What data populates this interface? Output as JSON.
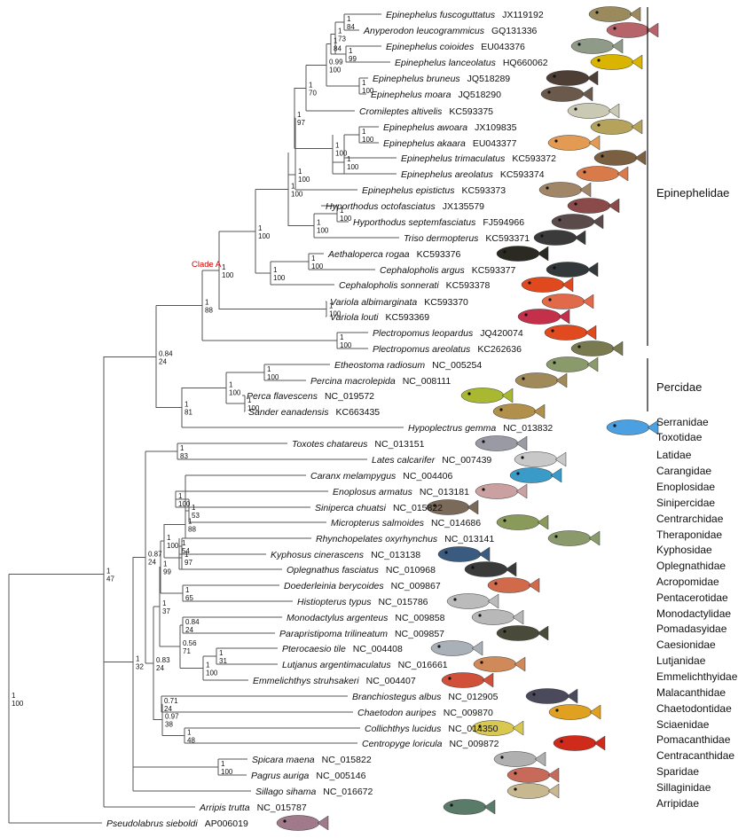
{
  "colors": {
    "branch": "#555555",
    "clade_label": "#d40000",
    "text": "#111111"
  },
  "clade_label": "Clade A",
  "groups": [
    "Epinephelidae",
    "Percidae"
  ],
  "families": [
    "Serranidae",
    "Toxotidae",
    "Latidae",
    "Carangidae",
    "Enoplosidae",
    "Sinipercidae",
    "Centrarchidae",
    "Theraponidae",
    "Kyphosidae",
    "Oplegnathidae",
    "Acropomidae",
    "Pentacerotidae",
    "Monodactylidae",
    "Pomadasyidae",
    "Caesionidae",
    "Lutjanidae",
    "Emmelichthyidae",
    "Malacanthidae",
    "Chaetodontidae",
    "Sciaenidae",
    "Pomacanthidae",
    "Centracanthidae",
    "Sparidae",
    "Sillaginidae",
    "Arripidae"
  ],
  "taxa": [
    {
      "species": "Epinephelus fuscoguttatus",
      "acc": "JX119192",
      "fish": "#9a8a5c"
    },
    {
      "species": "Anyperodon leucogrammicus",
      "acc": "GQ131336",
      "fish": "#b7636a"
    },
    {
      "species": "Epinephelus coioides",
      "acc": "EU043376",
      "fish": "#8f9a88"
    },
    {
      "species": "Epinephelus lanceolatus",
      "acc": "HQ660062",
      "fish": "#d9b400"
    },
    {
      "species": "Epinephelus bruneus",
      "acc": "JQ518289",
      "fish": "#4e3f36"
    },
    {
      "species": "Epinephelus moara",
      "acc": "JQ518290",
      "fish": "#6b5a4c"
    },
    {
      "species": "Cromileptes altivelis",
      "acc": "KC593375",
      "fish": "#c9c9b4"
    },
    {
      "species": "Epinephelus awoara",
      "acc": "JX109835",
      "fish": "#b5a35c"
    },
    {
      "species": "Epinephelus akaara",
      "acc": "EU043377",
      "fish": "#e39a52"
    },
    {
      "species": "Epinephelus trimaculatus",
      "acc": "KC593372",
      "fish": "#7a6040"
    },
    {
      "species": "Epinephelus areolatus",
      "acc": "KC593374",
      "fish": "#d97a4a"
    },
    {
      "species": "Epinephelus epistictus",
      "acc": "KC593373",
      "fish": "#a08666"
    },
    {
      "species": "Hyporthodus octofasciatus",
      "acc": "JX135579",
      "fish": "#8a4a4a"
    },
    {
      "species": "Hyporthodus septemfasciatus",
      "acc": "FJ594966",
      "fish": "#5a4a4a"
    },
    {
      "species": "Triso dermopterus",
      "acc": "KC593371",
      "fish": "#3a3a3a"
    },
    {
      "species": "Aethaloperca rogaa",
      "acc": "KC593376",
      "fish": "#2a2a22"
    },
    {
      "species": "Cephalopholis argus",
      "acc": "KC593377",
      "fish": "#33383a"
    },
    {
      "species": "Cephalopholis sonnerati",
      "acc": "KC593378",
      "fish": "#e0491e"
    },
    {
      "species": "Variola albimarginata",
      "acc": "KC593370",
      "fish": "#e06a4a"
    },
    {
      "species": "Variola louti",
      "acc": "KC593369",
      "fish": "#c4304a"
    },
    {
      "species": "Plectropomus leopardus",
      "acc": "JQ420074",
      "fish": "#e04a1e"
    },
    {
      "species": "Plectropomus areolatus",
      "acc": "KC262636",
      "fish": "#7a7a50"
    },
    {
      "species": "Etheostoma radiosum",
      "acc": "NC_005254",
      "fish": "#8a9a6a"
    },
    {
      "species": "Percina macrolepida",
      "acc": "NC_008111",
      "fish": "#a08a5a"
    },
    {
      "species": "Perca flavescens",
      "acc": "NC_019572",
      "fish": "#a8b830"
    },
    {
      "species": "Sander eanadensis",
      "acc": "KC663435",
      "fish": "#b0904a"
    },
    {
      "species": "Hypoplectrus gemma",
      "acc": "NC_013832",
      "fish": "#4aa0e0"
    },
    {
      "species": "Toxotes chatareus",
      "acc": "NC_013151",
      "fish": "#9a9aa4"
    },
    {
      "species": "Lates calcarifer",
      "acc": "NC_007439",
      "fish": "#c8c8c8"
    },
    {
      "species": "Caranx melampygus",
      "acc": "NC_004406",
      "fish": "#3a9ac8"
    },
    {
      "species": "Enoplosus armatus",
      "acc": "NC_013181",
      "fish": "#caa0a0"
    },
    {
      "species": "Siniperca chuatsi",
      "acc": "NC_015822",
      "fish": "#7a6a5a"
    },
    {
      "species": "Micropterus salmoides",
      "acc": "NC_014686",
      "fish": "#8a9a5a"
    },
    {
      "species": "Rhynchopelates oxyrhynchus",
      "acc": "NC_013141",
      "fish": "#8a9a6a"
    },
    {
      "species": "Kyphosus cinerascens",
      "acc": "NC_013138",
      "fish": "#3a5a80"
    },
    {
      "species": "Oplegnathus fasciatus",
      "acc": "NC_010968",
      "fish": "#3a3a3a"
    },
    {
      "species": "Doederleinia berycoides",
      "acc": "NC_009867",
      "fish": "#d06a4a"
    },
    {
      "species": "Histiopterus typus",
      "acc": "NC_015786",
      "fish": "#bbbbbb"
    },
    {
      "species": "Monodactylus argenteus",
      "acc": "NC_009858",
      "fish": "#b8b8b8"
    },
    {
      "species": "Parapristipoma trilineatum",
      "acc": "NC_009857",
      "fish": "#4a4a3a"
    },
    {
      "species": "Pterocaesio tile",
      "acc": "NC_004408",
      "fish": "#aab0b8"
    },
    {
      "species": "Lutjanus argentimaculatus",
      "acc": "NC_016661",
      "fish": "#d08a5a"
    },
    {
      "species": "Emmelichthys struhsakeri",
      "acc": "NC_004407",
      "fish": "#d0503a"
    },
    {
      "species": "Branchiostegus albus",
      "acc": "NC_012905",
      "fish": "#4a4a5a"
    },
    {
      "species": "Chaetodon auripes",
      "acc": "NC_009870",
      "fish": "#e0a020"
    },
    {
      "species": "Collichthys lucidus",
      "acc": "NC_014350",
      "fish": "#d8c850"
    },
    {
      "species": "Centropyge loricula",
      "acc": "NC_009872",
      "fish": "#d02a1a"
    },
    {
      "species": "Spicara maena",
      "acc": "NC_015822",
      "fish": "#b0b0b0"
    },
    {
      "species": "Pagrus auriga",
      "acc": "NC_005146",
      "fish": "#c86a5a"
    },
    {
      "species": "Sillago sihama",
      "acc": "NC_016672",
      "fish": "#c8b890"
    },
    {
      "species": "Arripis trutta",
      "acc": "NC_015787",
      "fish": "#5a7a6a"
    },
    {
      "species": "Pseudolabrus sieboldi",
      "acc": "AP006019",
      "fish": "#a07a8a"
    }
  ],
  "supports": [
    {
      "a": "1",
      "b": "84"
    },
    {
      "a": "1",
      "b": "73"
    },
    {
      "a": "1",
      "b": "99"
    },
    {
      "a": "1",
      "b": "84"
    },
    {
      "a": "1",
      "b": "100"
    },
    {
      "a": "0.99",
      "b": "100"
    },
    {
      "a": "1",
      "b": "70"
    },
    {
      "a": "1",
      "b": "100"
    },
    {
      "a": "1",
      "b": "100"
    },
    {
      "a": "1",
      "b": "100"
    },
    {
      "a": "1",
      "b": "97"
    },
    {
      "a": "1",
      "b": "100"
    },
    {
      "a": "1",
      "b": "100"
    },
    {
      "a": "1",
      "b": "100"
    },
    {
      "a": "1",
      "b": "100"
    },
    {
      "a": "1",
      "b": "100"
    },
    {
      "a": "1",
      "b": "100"
    },
    {
      "a": "1",
      "b": "100"
    },
    {
      "a": "1",
      "b": "100"
    },
    {
      "a": "1",
      "b": "100"
    },
    {
      "a": "1",
      "b": "100"
    },
    {
      "a": "1",
      "b": "88"
    },
    {
      "a": "1",
      "b": "100"
    },
    {
      "a": "1",
      "b": "100"
    },
    {
      "a": "1",
      "b": "100"
    },
    {
      "a": "1",
      "b": "81"
    },
    {
      "a": "0.84",
      "b": "24"
    },
    {
      "a": "1",
      "b": "83"
    },
    {
      "a": "1",
      "b": "100"
    },
    {
      "a": "1",
      "b": "53"
    },
    {
      "a": "1",
      "b": "88"
    },
    {
      "a": "1",
      "b": "54"
    },
    {
      "a": "1",
      "b": "97"
    },
    {
      "a": "1",
      "b": "100"
    },
    {
      "a": "1",
      "b": "65"
    },
    {
      "a": "1",
      "b": "99"
    },
    {
      "a": "0.84",
      "b": "24"
    },
    {
      "a": "1",
      "b": "31"
    },
    {
      "a": "1",
      "b": "100"
    },
    {
      "a": "0.56",
      "b": "71"
    },
    {
      "a": "1",
      "b": "37"
    },
    {
      "a": "0.71",
      "b": "24"
    },
    {
      "a": "1",
      "b": "48"
    },
    {
      "a": "0.97",
      "b": "38"
    },
    {
      "a": "0.83",
      "b": "24"
    },
    {
      "a": "0.87",
      "b": "24"
    },
    {
      "a": "1",
      "b": "100"
    },
    {
      "a": "1",
      "b": "32"
    },
    {
      "a": "1",
      "b": "47"
    },
    {
      "a": "1",
      "b": "100"
    }
  ]
}
